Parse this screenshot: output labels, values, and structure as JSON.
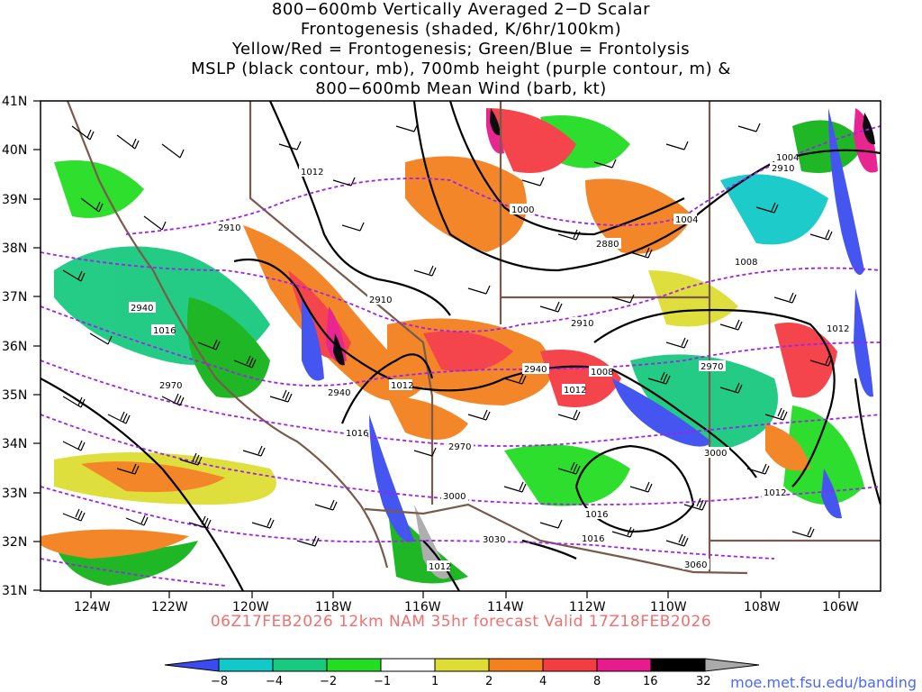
{
  "title": {
    "line1": "800−600mb Vertically Averaged 2−D Scalar",
    "line2": "Frontogenesis (shaded, K/6hr/100km)",
    "line3": "Yellow/Red = Frontogenesis;  Green/Blue = Frontolysis",
    "line4": "MSLP (black contour, mb), 700mb height (purple contour, m) &",
    "line5": "800−600mb Mean Wind (barb, kt)"
  },
  "footer": "06Z17FEB2026 12km NAM 35hr forecast Valid 17Z18FEB2026",
  "credit": "moe.met.fsu.edu/banding",
  "axes": {
    "lat_labels": [
      "41N",
      "40N",
      "39N",
      "38N",
      "37N",
      "36N",
      "35N",
      "34N",
      "33N",
      "32N",
      "31N"
    ],
    "lon_labels": [
      "124W",
      "122W",
      "120W",
      "118W",
      "116W",
      "114W",
      "112W",
      "110W",
      "108W",
      "106W"
    ]
  },
  "contour_labels": {
    "mslp": [
      "1012",
      "1000",
      "1004",
      "1008",
      "1012",
      "1016",
      "1012",
      "1008",
      "1012",
      "1016",
      "1016",
      "1016",
      "1012",
      "1012",
      "1012"
    ],
    "height": [
      "2910",
      "2880",
      "2910",
      "2910",
      "2940",
      "2970",
      "2940",
      "2940",
      "2970",
      "2970",
      "3000",
      "3000",
      "3030",
      "3060",
      "3000"
    ]
  },
  "colorbar": {
    "ticks": [
      "−8",
      "−4",
      "−2",
      "−1",
      "1",
      "2",
      "4",
      "8",
      "16",
      "32"
    ],
    "colors": [
      "#3a4cf0",
      "#11c9c9",
      "#19c97f",
      "#14b41a",
      "#23dd23",
      "#ffffff",
      "#dddd33",
      "#f4801f",
      "#f43c43",
      "#e81a8c",
      "#000000",
      "#aaaaaa"
    ]
  }
}
